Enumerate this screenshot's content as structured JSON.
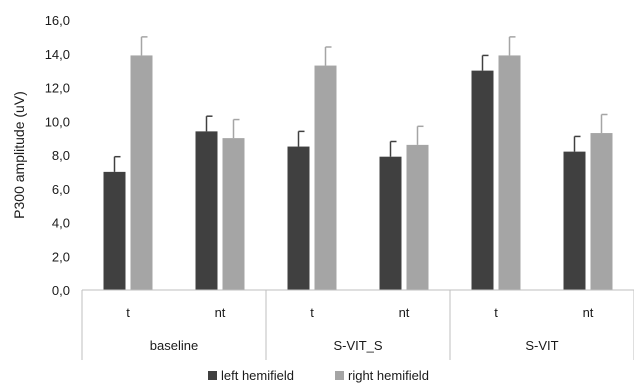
{
  "chart_data": {
    "type": "bar",
    "title": "",
    "xlabel": "",
    "ylabel": "P300 amplitude (uV)",
    "ylim": [
      0,
      16
    ],
    "ytick_labels": [
      "0,0",
      "2,0",
      "4,0",
      "6,0",
      "8,0",
      "10,0",
      "12,0",
      "14,0",
      "16,0"
    ],
    "ytick_values": [
      0,
      2,
      4,
      6,
      8,
      10,
      12,
      14,
      16
    ],
    "grid": false,
    "legend_position": "bottom",
    "groups": [
      "baseline",
      "S-VIT_S",
      "S-VIT"
    ],
    "categories": [
      "t",
      "nt",
      "t",
      "nt",
      "t",
      "nt"
    ],
    "series": [
      {
        "name": "left hemifield",
        "color": "#404040",
        "values": [
          7.0,
          9.4,
          8.5,
          7.9,
          13.0,
          8.2
        ],
        "errors": [
          0.9,
          0.9,
          0.9,
          0.9,
          0.9,
          0.9
        ]
      },
      {
        "name": "right hemifield",
        "color": "#a5a5a5",
        "values": [
          13.9,
          9.0,
          13.3,
          8.6,
          13.9,
          9.3
        ],
        "errors": [
          1.1,
          1.1,
          1.1,
          1.1,
          1.1,
          1.1
        ]
      }
    ]
  }
}
